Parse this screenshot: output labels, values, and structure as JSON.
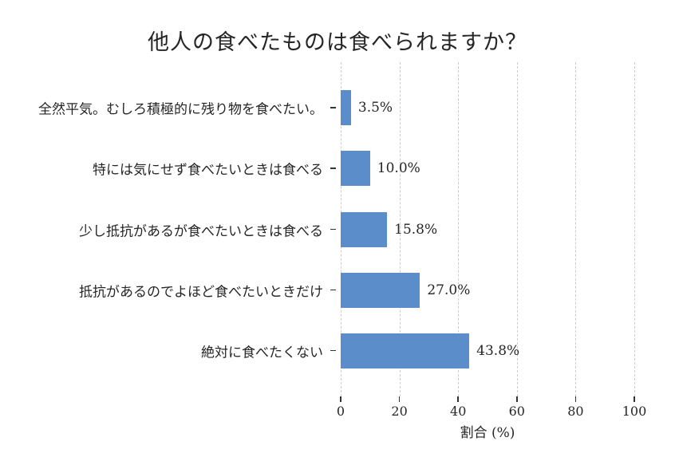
{
  "chart_data": {
    "type": "bar",
    "orientation": "horizontal",
    "title": "他人の食べたものは食べられますか？",
    "xlabel": "割合 (%)",
    "ylabel": "",
    "categories": [
      "全然平気。むしろ積極的に残り物を食べたい。",
      "特には気にせず食べたいときは食べる",
      "少し抵抗があるが食べたいときは食べる",
      "抵抗があるのでよほど食べたいときだけ",
      "絶対に食べたくない"
    ],
    "values": [
      3.5,
      10.0,
      15.8,
      27.0,
      43.8
    ],
    "value_labels": [
      "3.5%",
      "10.0%",
      "15.8%",
      "27.0%",
      "43.8%"
    ],
    "xlim": [
      0,
      100
    ],
    "xticks": [
      0,
      20,
      40,
      60,
      80,
      100
    ],
    "grid": "vertical-dashed",
    "legend": "none",
    "colors": {
      "bar": "#5b8dca",
      "gridline": "#cccccc",
      "tick": "#333333",
      "text": "#262626",
      "background": "#ffffff"
    }
  }
}
